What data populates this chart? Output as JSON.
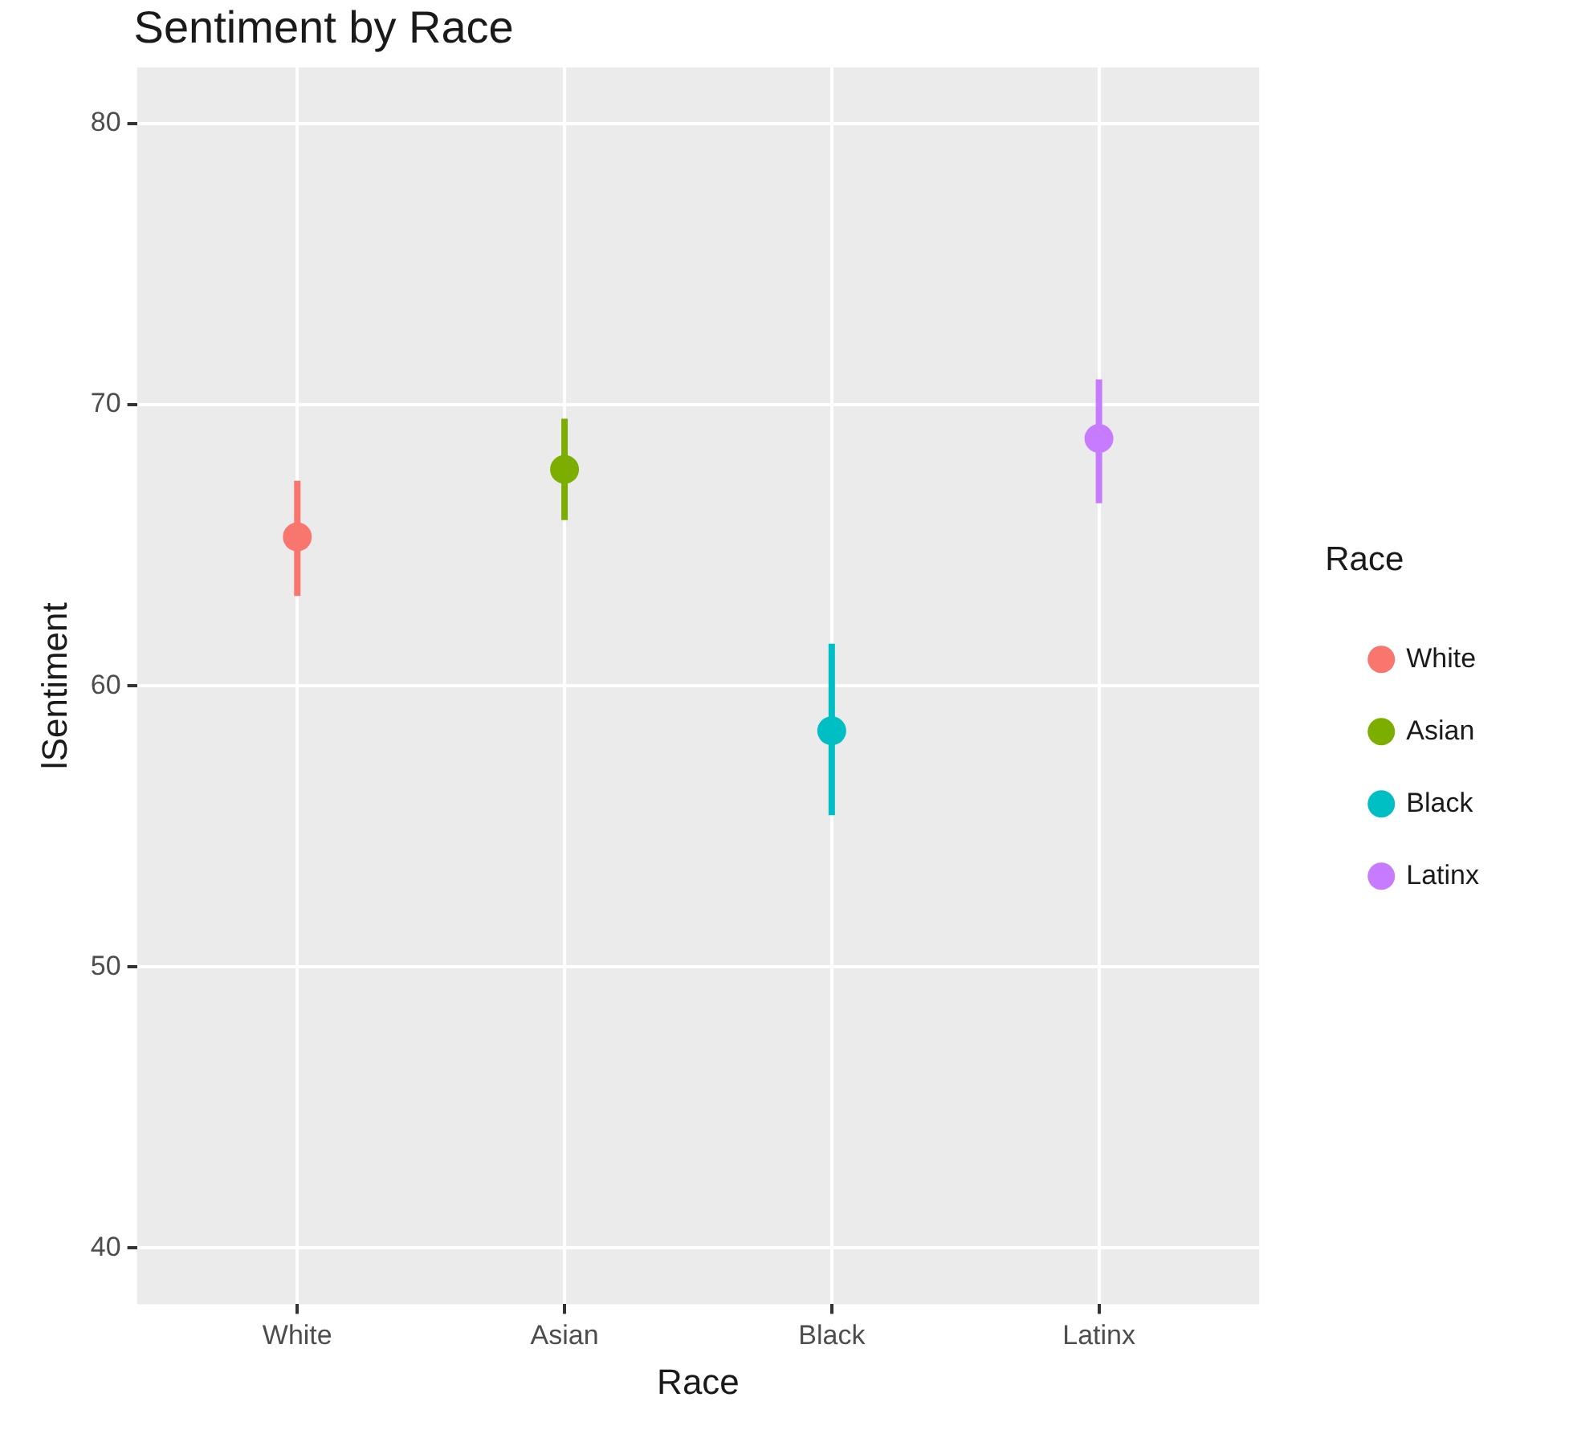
{
  "chart_data": {
    "type": "scatter",
    "title": "Sentiment by Race",
    "xlabel": "Race",
    "ylabel": "lSentiment",
    "legend_title": "Race",
    "categories": [
      "White",
      "Asian",
      "Black",
      "Latinx"
    ],
    "series": [
      {
        "name": "White",
        "color": "#f8766d",
        "values": [
          65.3,
          null,
          null,
          null
        ],
        "errors": [
          [
            63.2,
            67.3
          ],
          null,
          null,
          null
        ]
      },
      {
        "name": "Asian",
        "color": "#7cae00",
        "values": [
          null,
          67.7,
          null,
          null
        ],
        "errors": [
          null,
          [
            65.9,
            69.5
          ],
          null,
          null
        ]
      },
      {
        "name": "Black",
        "color": "#00bfc4",
        "values": [
          null,
          null,
          58.4,
          null
        ],
        "errors": [
          null,
          null,
          [
            55.4,
            61.5
          ],
          null
        ]
      },
      {
        "name": "Latinx",
        "color": "#c77cff",
        "values": [
          null,
          null,
          null,
          68.8
        ],
        "errors": [
          null,
          null,
          null,
          [
            66.5,
            70.9
          ]
        ]
      }
    ],
    "ylim": [
      38,
      82
    ],
    "yticks": [
      40,
      50,
      60,
      70,
      80
    ],
    "grid": true,
    "legend": "right",
    "marker": "circle"
  }
}
